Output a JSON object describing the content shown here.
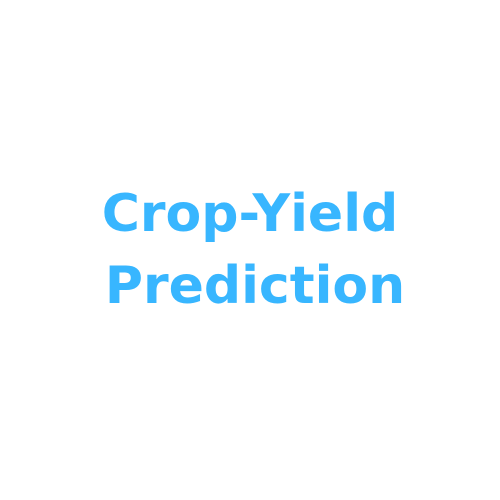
{
  "title": {
    "line1": "Crop-Yield",
    "line2": "Prediction"
  },
  "colors": {
    "background": "#ffffff",
    "title_text": "#38b6ff"
  }
}
